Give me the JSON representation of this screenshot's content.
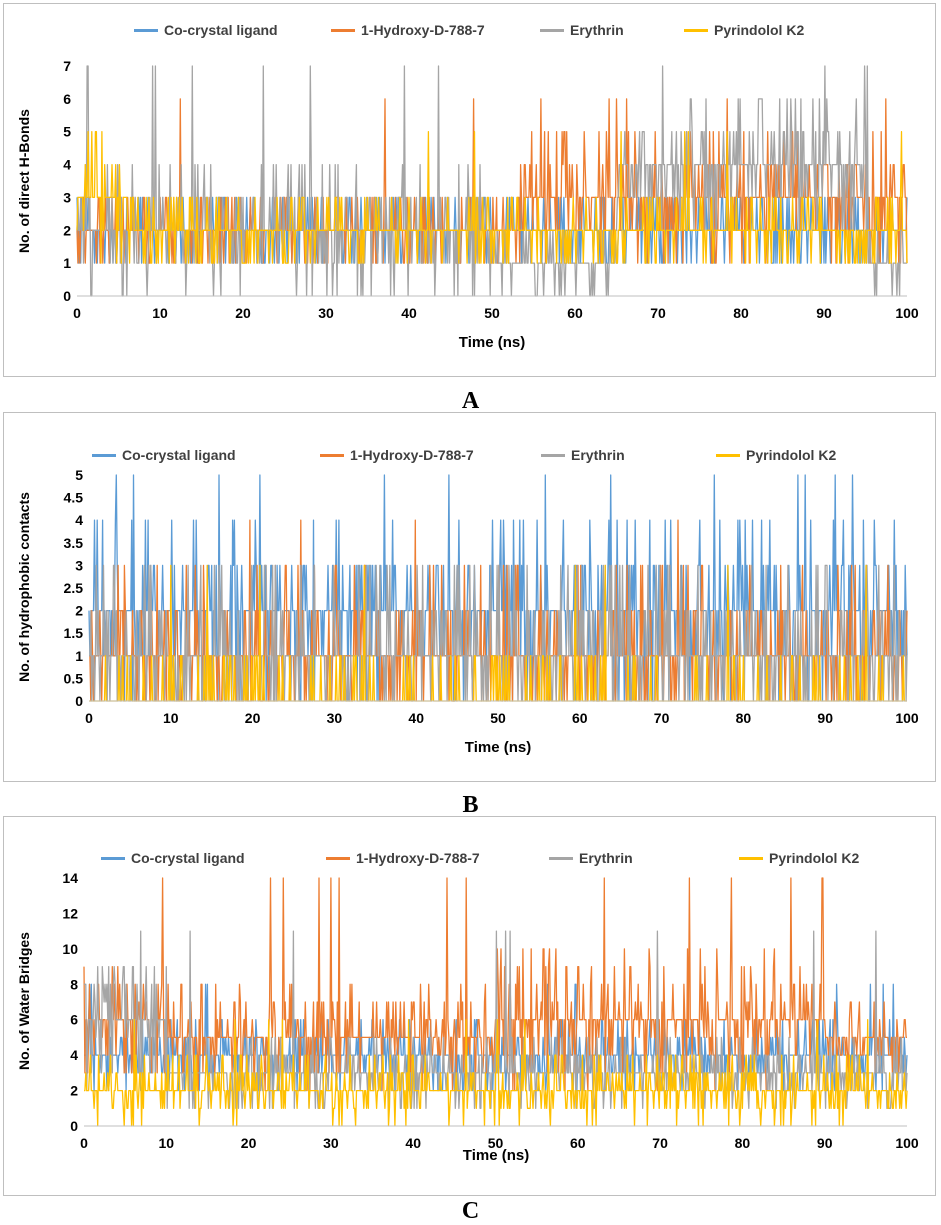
{
  "colors": {
    "co_crystal": "#5b9bd5",
    "hydroxy": "#ed7d31",
    "erythrin": "#a5a5a5",
    "pyrindolol": "#ffc000",
    "axis": "#bfbfbf",
    "text": "#000000"
  },
  "chart_data": [
    {
      "panel": "A",
      "type": "line",
      "xlabel": "Time (ns)",
      "ylabel": "No. of direct H-Bonds",
      "xlim": [
        0,
        100
      ],
      "ylim": [
        0,
        7
      ],
      "xticks": [
        "0",
        "10",
        "20",
        "30",
        "40",
        "50",
        "60",
        "70",
        "80",
        "90",
        "100"
      ],
      "yticks": [
        "0",
        "1",
        "2",
        "3",
        "4",
        "5",
        "6",
        "7"
      ],
      "legend": [
        "Co-crystal ligand",
        "1-Hydroxy-D-788-7",
        "Erythrin",
        "Pyrindolol K2"
      ],
      "legend_position": "top",
      "series": [
        {
          "name": "Co-crystal ligand",
          "color_key": "co_crystal",
          "typical": 2,
          "min": 1,
          "max": 3,
          "segments": [
            {
              "from": 0,
              "to": 100,
              "typical": 2,
              "spread": 1
            }
          ]
        },
        {
          "name": "1-Hydroxy-D-788-7",
          "color_key": "hydroxy",
          "typical": 2,
          "min": 0,
          "max": 6,
          "segments": [
            {
              "from": 0,
              "to": 53,
              "typical": 2,
              "spread": 1
            },
            {
              "from": 53,
              "to": 100,
              "typical": 3,
              "spread": 2
            }
          ]
        },
        {
          "name": "Erythrin",
          "color_key": "erythrin",
          "typical": 2,
          "min": 0,
          "max": 7,
          "segments": [
            {
              "from": 0,
              "to": 50,
              "typical": 2,
              "spread": 2
            },
            {
              "from": 50,
              "to": 65,
              "typical": 1,
              "spread": 1
            },
            {
              "from": 65,
              "to": 95,
              "typical": 4,
              "spread": 2
            },
            {
              "from": 95,
              "to": 100,
              "typical": 1,
              "spread": 1
            }
          ]
        },
        {
          "name": "Pyrindolol K2",
          "color_key": "pyrindolol",
          "typical": 2,
          "min": 1,
          "max": 5,
          "segments": [
            {
              "from": 0,
              "to": 6,
              "typical": 3,
              "spread": 2
            },
            {
              "from": 6,
              "to": 100,
              "typical": 2,
              "spread": 1
            }
          ]
        }
      ]
    },
    {
      "panel": "B",
      "type": "line",
      "xlabel": "Time (ns)",
      "ylabel": "No. of hydrophobic contacts",
      "xlim": [
        0,
        100
      ],
      "ylim": [
        0,
        5
      ],
      "xticks": [
        "0",
        "10",
        "20",
        "30",
        "40",
        "50",
        "60",
        "70",
        "80",
        "90",
        "100"
      ],
      "yticks": [
        "0",
        "0.5",
        "1",
        "1.5",
        "2",
        "2.5",
        "3",
        "3.5",
        "4",
        "4.5",
        "5"
      ],
      "legend": [
        "Co-crystal ligand",
        "1-Hydroxy-D-788-7",
        "Erythrin",
        "Pyrindolol K2"
      ],
      "legend_position": "top",
      "series": [
        {
          "name": "Co-crystal ligand",
          "color_key": "co_crystal",
          "typical": 2,
          "min": 0,
          "max": 5,
          "segments": [
            {
              "from": 0,
              "to": 100,
              "typical": 2,
              "spread": 2
            }
          ]
        },
        {
          "name": "1-Hydroxy-D-788-7",
          "color_key": "hydroxy",
          "typical": 1,
          "min": 0,
          "max": 4,
          "segments": [
            {
              "from": 0,
              "to": 100,
              "typical": 1,
              "spread": 2
            }
          ]
        },
        {
          "name": "Erythrin",
          "color_key": "erythrin",
          "typical": 1,
          "min": 0,
          "max": 3,
          "segments": [
            {
              "from": 0,
              "to": 100,
              "typical": 1,
              "spread": 2
            }
          ]
        },
        {
          "name": "Pyrindolol K2",
          "color_key": "pyrindolol",
          "typical": 0.5,
          "min": 0,
          "max": 3,
          "segments": [
            {
              "from": 0,
              "to": 100,
              "typical": 0,
              "spread": 1
            }
          ]
        }
      ]
    },
    {
      "panel": "C",
      "type": "line",
      "xlabel": "Time (ns)",
      "ylabel": "No. of Water Bridges",
      "xlim": [
        0,
        100
      ],
      "ylim": [
        0,
        14
      ],
      "xticks": [
        "0",
        "10",
        "20",
        "30",
        "40",
        "50",
        "60",
        "70",
        "80",
        "90",
        "100"
      ],
      "yticks": [
        "0",
        "2",
        "4",
        "6",
        "8",
        "10",
        "12",
        "14"
      ],
      "legend": [
        "Co-crystal ligand",
        "1-Hydroxy-D-788-7",
        "Erythrin",
        "Pyrindolol K2"
      ],
      "legend_position": "top",
      "series": [
        {
          "name": "Co-crystal ligand",
          "color_key": "co_crystal",
          "typical": 4,
          "min": 1,
          "max": 8,
          "segments": [
            {
              "from": 0,
              "to": 100,
              "typical": 4,
              "spread": 2
            }
          ]
        },
        {
          "name": "1-Hydroxy-D-788-7",
          "color_key": "hydroxy",
          "typical": 6,
          "min": 2,
          "max": 14,
          "segments": [
            {
              "from": 0,
              "to": 10,
              "typical": 6,
              "spread": 3
            },
            {
              "from": 10,
              "to": 50,
              "typical": 5,
              "spread": 3
            },
            {
              "from": 50,
              "to": 90,
              "typical": 6,
              "spread": 4
            },
            {
              "from": 90,
              "to": 100,
              "typical": 5,
              "spread": 2
            }
          ]
        },
        {
          "name": "Erythrin",
          "color_key": "erythrin",
          "typical": 3,
          "min": 0,
          "max": 11,
          "segments": [
            {
              "from": 0,
              "to": 10,
              "typical": 6,
              "spread": 4
            },
            {
              "from": 10,
              "to": 100,
              "typical": 3,
              "spread": 2
            }
          ]
        },
        {
          "name": "Pyrindolol K2",
          "color_key": "pyrindolol",
          "typical": 2,
          "min": 0,
          "max": 6,
          "segments": [
            {
              "from": 0,
              "to": 100,
              "typical": 2,
              "spread": 2
            }
          ]
        }
      ]
    }
  ],
  "panel_letters": [
    "A",
    "B",
    "C"
  ]
}
